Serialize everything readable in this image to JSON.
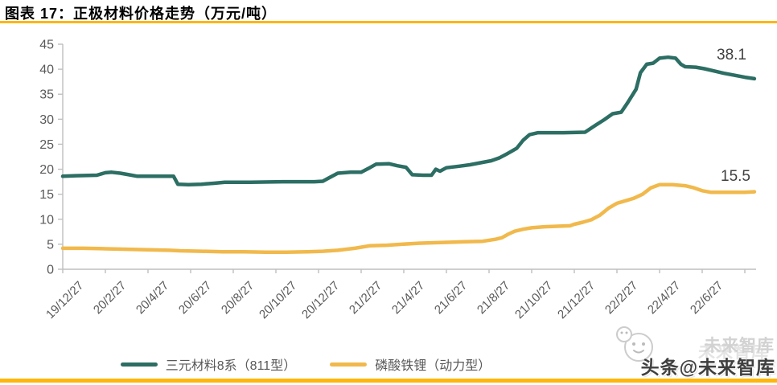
{
  "header": {
    "title": "图表 17：正极材料价格走势（万元/吨）"
  },
  "colors": {
    "accent_orange": "#FFB50A",
    "axis_line": "#BFBFBF",
    "tick_text": "#595959",
    "data_label_text": "#404040",
    "series_green": "#2C6E63",
    "series_yellow": "#F1B94C"
  },
  "watermark": {
    "main": "头条@未来智库",
    "ghost": "未来智库"
  },
  "chart_data": {
    "type": "line",
    "title": "正极材料价格走势（万元/吨）",
    "unit": "万元/吨",
    "ylim": [
      0,
      45
    ],
    "y_ticks": [
      0,
      5,
      10,
      15,
      20,
      25,
      30,
      35,
      40,
      45
    ],
    "grid": false,
    "legend_position": "bottom",
    "x_tick_labels": [
      "19/12/27",
      "20/2/27",
      "20/4/27",
      "20/6/27",
      "20/8/27",
      "20/10/27",
      "20/12/27",
      "21/2/27",
      "21/4/27",
      "21/6/27",
      "21/8/27",
      "21/10/27",
      "21/12/27",
      "22/2/27",
      "22/4/27",
      "22/6/27"
    ],
    "x_unit_note": "points below use months elapsed since 19/12/27 (2 months per tick)",
    "series": [
      {
        "name": "三元材料8系（811型）",
        "color": "#2C6E63",
        "end_label": "38.1",
        "end_value": 38.1,
        "points": [
          [
            0,
            18.6
          ],
          [
            0.6,
            18.7
          ],
          [
            1.6,
            18.8
          ],
          [
            2.0,
            19.3
          ],
          [
            2.3,
            19.4
          ],
          [
            2.7,
            19.2
          ],
          [
            3.1,
            18.9
          ],
          [
            3.5,
            18.6
          ],
          [
            4.6,
            18.6
          ],
          [
            5.2,
            18.6
          ],
          [
            5.4,
            17.0
          ],
          [
            5.9,
            16.9
          ],
          [
            6.5,
            17.0
          ],
          [
            7.1,
            17.2
          ],
          [
            7.6,
            17.4
          ],
          [
            8.8,
            17.4
          ],
          [
            10.3,
            17.5
          ],
          [
            11.8,
            17.5
          ],
          [
            12.2,
            17.6
          ],
          [
            12.5,
            18.3
          ],
          [
            12.9,
            19.2
          ],
          [
            13.5,
            19.4
          ],
          [
            14.0,
            19.4
          ],
          [
            14.4,
            20.3
          ],
          [
            14.7,
            21.0
          ],
          [
            15.3,
            21.1
          ],
          [
            15.7,
            20.7
          ],
          [
            16.1,
            20.4
          ],
          [
            16.4,
            18.9
          ],
          [
            16.9,
            18.8
          ],
          [
            17.3,
            18.8
          ],
          [
            17.5,
            20.0
          ],
          [
            17.7,
            19.6
          ],
          [
            18.0,
            20.3
          ],
          [
            18.6,
            20.6
          ],
          [
            19.1,
            20.9
          ],
          [
            19.6,
            21.3
          ],
          [
            20.1,
            21.7
          ],
          [
            20.5,
            22.3
          ],
          [
            20.9,
            23.2
          ],
          [
            21.3,
            24.2
          ],
          [
            21.6,
            25.8
          ],
          [
            21.9,
            26.9
          ],
          [
            22.3,
            27.3
          ],
          [
            23.5,
            27.3
          ],
          [
            24.5,
            27.4
          ],
          [
            25.0,
            28.8
          ],
          [
            25.4,
            29.9
          ],
          [
            25.8,
            31.1
          ],
          [
            26.2,
            31.4
          ],
          [
            26.5,
            33.3
          ],
          [
            26.9,
            36.0
          ],
          [
            27.1,
            39.3
          ],
          [
            27.4,
            41.0
          ],
          [
            27.7,
            41.2
          ],
          [
            28.0,
            42.2
          ],
          [
            28.4,
            42.4
          ],
          [
            28.75,
            42.2
          ],
          [
            29.0,
            41.0
          ],
          [
            29.2,
            40.5
          ],
          [
            29.7,
            40.4
          ],
          [
            30.1,
            40.1
          ],
          [
            30.6,
            39.6
          ],
          [
            31.0,
            39.2
          ],
          [
            31.5,
            38.8
          ],
          [
            32.0,
            38.4
          ],
          [
            32.45,
            38.1
          ]
        ]
      },
      {
        "name": "磷酸铁锂（动力型）",
        "color": "#F1B94C",
        "end_label": "15.5",
        "end_value": 15.5,
        "points": [
          [
            0,
            4.2
          ],
          [
            1,
            4.2
          ],
          [
            2,
            4.1
          ],
          [
            3,
            4.0
          ],
          [
            4,
            3.9
          ],
          [
            5,
            3.8
          ],
          [
            5.5,
            3.7
          ],
          [
            6.5,
            3.6
          ],
          [
            7.5,
            3.5
          ],
          [
            8.5,
            3.5
          ],
          [
            9.5,
            3.4
          ],
          [
            10.5,
            3.4
          ],
          [
            11.5,
            3.5
          ],
          [
            12.2,
            3.6
          ],
          [
            12.9,
            3.8
          ],
          [
            13.7,
            4.2
          ],
          [
            14.4,
            4.7
          ],
          [
            15.2,
            4.8
          ],
          [
            15.9,
            5.0
          ],
          [
            16.7,
            5.2
          ],
          [
            17.4,
            5.3
          ],
          [
            18.2,
            5.4
          ],
          [
            18.9,
            5.5
          ],
          [
            19.7,
            5.6
          ],
          [
            20.3,
            6.0
          ],
          [
            20.6,
            6.3
          ],
          [
            20.9,
            7.0
          ],
          [
            21.2,
            7.6
          ],
          [
            21.6,
            8.0
          ],
          [
            22.0,
            8.3
          ],
          [
            22.6,
            8.5
          ],
          [
            23.2,
            8.6
          ],
          [
            23.8,
            8.7
          ],
          [
            24.0,
            9.0
          ],
          [
            24.4,
            9.4
          ],
          [
            24.8,
            9.9
          ],
          [
            25.2,
            10.8
          ],
          [
            25.6,
            12.2
          ],
          [
            26.0,
            13.2
          ],
          [
            26.4,
            13.7
          ],
          [
            26.8,
            14.2
          ],
          [
            27.2,
            15.0
          ],
          [
            27.6,
            16.3
          ],
          [
            28.0,
            16.9
          ],
          [
            28.6,
            16.9
          ],
          [
            29.2,
            16.7
          ],
          [
            29.6,
            16.3
          ],
          [
            30.0,
            15.7
          ],
          [
            30.4,
            15.4
          ],
          [
            31.0,
            15.4
          ],
          [
            31.6,
            15.4
          ],
          [
            32.0,
            15.4
          ],
          [
            32.45,
            15.5
          ]
        ]
      }
    ]
  }
}
